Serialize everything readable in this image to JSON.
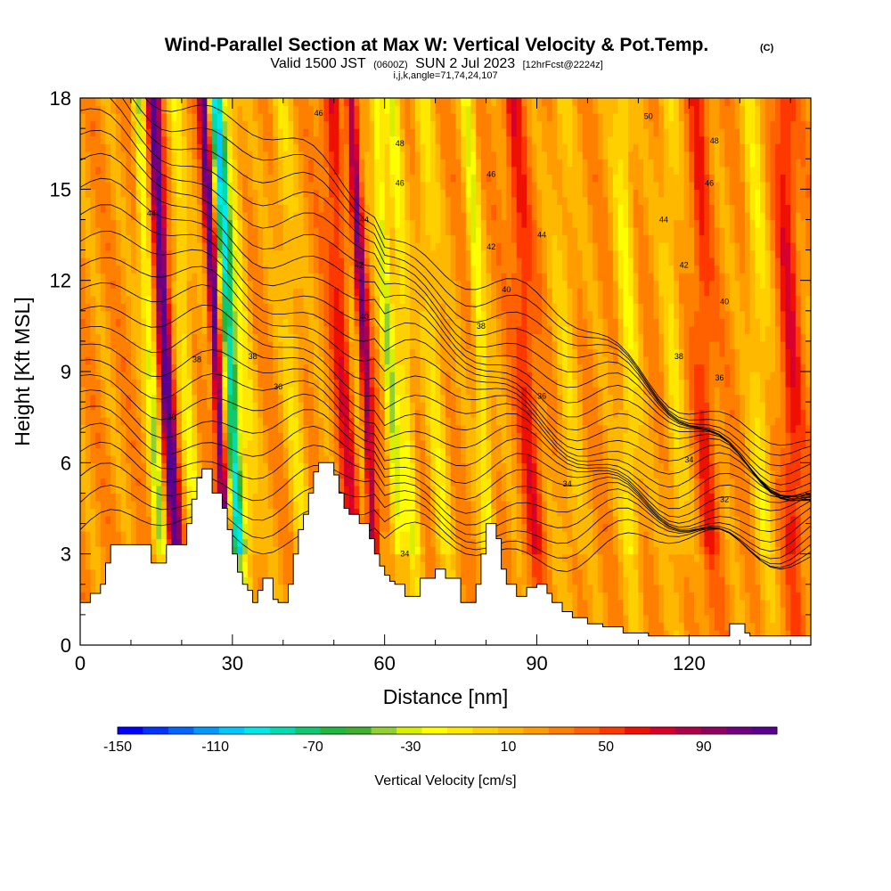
{
  "chart_data": {
    "type": "heatmap",
    "title": "Wind-Parallel Section at Max W: Vertical Velocity & Pot.Temp.",
    "title_suffix": "(C)",
    "subtitle_parts": {
      "valid": "Valid 1500 JST",
      "utc": "(0600Z)",
      "date": "SUN 2 Jul 2023",
      "fcst": "[12hrFcst@2224z]"
    },
    "subtitle2": "i,j,k,angle=71,74,24,107",
    "xlabel": "Distance [nm]",
    "ylabel": "Height [Kft MSL]",
    "xlim": [
      0,
      144
    ],
    "ylim": [
      0,
      18
    ],
    "x_ticks": [
      "0",
      "30",
      "60",
      "90",
      "120"
    ],
    "y_ticks": [
      "0",
      "3",
      "6",
      "9",
      "12",
      "15",
      "18"
    ],
    "colorbar": {
      "label": "Vertical Velocity [cm/s]",
      "ticks": [
        "-150",
        "-110",
        "-70",
        "-30",
        "10",
        "50",
        "90"
      ],
      "range": [
        -150,
        120
      ],
      "colors": [
        "#0000ff",
        "#0033ff",
        "#0066ff",
        "#0099ff",
        "#00c8ff",
        "#00e8e8",
        "#00dcb0",
        "#10c870",
        "#20b840",
        "#40b030",
        "#90d030",
        "#d8f000",
        "#ffff00",
        "#ffe800",
        "#ffd000",
        "#ffb800",
        "#ff9c00",
        "#ff8000",
        "#ff6000",
        "#ff3800",
        "#ee1000",
        "#d8002a",
        "#b00048",
        "#900060",
        "#700080",
        "#580090"
      ]
    },
    "theta_contour_levels": [
      "32",
      "34",
      "36",
      "38",
      "40",
      "42",
      "44",
      "46",
      "48",
      "50"
    ],
    "contour_labels": [
      {
        "x": 47,
        "y": 17.5,
        "text": "46"
      },
      {
        "x": 112,
        "y": 17.4,
        "text": "50"
      },
      {
        "x": 125,
        "y": 16.6,
        "text": "48"
      },
      {
        "x": 63,
        "y": 16.5,
        "text": "48"
      },
      {
        "x": 81,
        "y": 15.5,
        "text": "46"
      },
      {
        "x": 63,
        "y": 15.2,
        "text": "46"
      },
      {
        "x": 124,
        "y": 15.2,
        "text": "46"
      },
      {
        "x": 14,
        "y": 14.2,
        "text": "44"
      },
      {
        "x": 56,
        "y": 14.0,
        "text": "44"
      },
      {
        "x": 115,
        "y": 14.0,
        "text": "44"
      },
      {
        "x": 91,
        "y": 13.5,
        "text": "44"
      },
      {
        "x": 81,
        "y": 13.1,
        "text": "42"
      },
      {
        "x": 55,
        "y": 12.5,
        "text": "42"
      },
      {
        "x": 119,
        "y": 12.5,
        "text": "42"
      },
      {
        "x": 84,
        "y": 11.7,
        "text": "40"
      },
      {
        "x": 127,
        "y": 11.3,
        "text": "40"
      },
      {
        "x": 56,
        "y": 10.8,
        "text": "40"
      },
      {
        "x": 79,
        "y": 10.5,
        "text": "38"
      },
      {
        "x": 23,
        "y": 9.4,
        "text": "38"
      },
      {
        "x": 34,
        "y": 9.5,
        "text": "38"
      },
      {
        "x": 118,
        "y": 9.5,
        "text": "38"
      },
      {
        "x": 126,
        "y": 8.8,
        "text": "36"
      },
      {
        "x": 39,
        "y": 8.5,
        "text": "36"
      },
      {
        "x": 91,
        "y": 8.2,
        "text": "36"
      },
      {
        "x": 18,
        "y": 7.5,
        "text": "36"
      },
      {
        "x": 120,
        "y": 6.1,
        "text": "34"
      },
      {
        "x": 96,
        "y": 5.3,
        "text": "34"
      },
      {
        "x": 127,
        "y": 4.8,
        "text": "32"
      },
      {
        "x": 64,
        "y": 3.0,
        "text": "34"
      }
    ],
    "terrain": [
      [
        0,
        1.4
      ],
      [
        2,
        1.4
      ],
      [
        2,
        1.7
      ],
      [
        4,
        1.7
      ],
      [
        4,
        2.0
      ],
      [
        5,
        2.0
      ],
      [
        5,
        2.7
      ],
      [
        6,
        2.7
      ],
      [
        6,
        3.3
      ],
      [
        14,
        3.3
      ],
      [
        14,
        2.7
      ],
      [
        17,
        2.7
      ],
      [
        17,
        3.3
      ],
      [
        21,
        3.3
      ],
      [
        21,
        4.0
      ],
      [
        22,
        4.0
      ],
      [
        22,
        4.8
      ],
      [
        23,
        4.8
      ],
      [
        23,
        5.5
      ],
      [
        24,
        5.5
      ],
      [
        24,
        5.8
      ],
      [
        26,
        5.8
      ],
      [
        26,
        5.0
      ],
      [
        28,
        5.0
      ],
      [
        28,
        4.5
      ],
      [
        29,
        4.5
      ],
      [
        29,
        3.8
      ],
      [
        30,
        3.8
      ],
      [
        30,
        3.0
      ],
      [
        31,
        3.0
      ],
      [
        31,
        2.4
      ],
      [
        32,
        2.4
      ],
      [
        32,
        2.0
      ],
      [
        33,
        2.0
      ],
      [
        33,
        1.8
      ],
      [
        34,
        1.8
      ],
      [
        34,
        1.4
      ],
      [
        35,
        1.4
      ],
      [
        35,
        1.8
      ],
      [
        36,
        1.8
      ],
      [
        36,
        2.2
      ],
      [
        38,
        2.2
      ],
      [
        38,
        1.5
      ],
      [
        39,
        1.5
      ],
      [
        39,
        1.4
      ],
      [
        41,
        1.4
      ],
      [
        41,
        2.0
      ],
      [
        42,
        2.0
      ],
      [
        42,
        3.0
      ],
      [
        43,
        3.0
      ],
      [
        43,
        3.8
      ],
      [
        44,
        3.8
      ],
      [
        44,
        4.3
      ],
      [
        45,
        4.3
      ],
      [
        45,
        5.0
      ],
      [
        46,
        5.0
      ],
      [
        46,
        5.7
      ],
      [
        47,
        5.7
      ],
      [
        47,
        6.0
      ],
      [
        50,
        6.0
      ],
      [
        50,
        5.6
      ],
      [
        51,
        5.6
      ],
      [
        51,
        5.0
      ],
      [
        52,
        5.0
      ],
      [
        52,
        4.5
      ],
      [
        53,
        4.5
      ],
      [
        53,
        4.3
      ],
      [
        55,
        4.3
      ],
      [
        55,
        4.0
      ],
      [
        57,
        4.0
      ],
      [
        57,
        3.5
      ],
      [
        58,
        3.5
      ],
      [
        58,
        3.0
      ],
      [
        59,
        3.0
      ],
      [
        59,
        2.6
      ],
      [
        60,
        2.6
      ],
      [
        60,
        2.3
      ],
      [
        61,
        2.3
      ],
      [
        61,
        2.1
      ],
      [
        62,
        2.1
      ],
      [
        62,
        2.0
      ],
      [
        64,
        2.0
      ],
      [
        64,
        1.6
      ],
      [
        67,
        1.6
      ],
      [
        67,
        2.2
      ],
      [
        70,
        2.2
      ],
      [
        70,
        2.5
      ],
      [
        72,
        2.5
      ],
      [
        72,
        2.2
      ],
      [
        75,
        2.2
      ],
      [
        75,
        1.4
      ],
      [
        78,
        1.4
      ],
      [
        78,
        2.0
      ],
      [
        79,
        2.0
      ],
      [
        79,
        3.0
      ],
      [
        80,
        3.0
      ],
      [
        80,
        4.0
      ],
      [
        82,
        4.0
      ],
      [
        82,
        3.5
      ],
      [
        83,
        3.5
      ],
      [
        83,
        2.5
      ],
      [
        84,
        2.5
      ],
      [
        84,
        2.0
      ],
      [
        86,
        2.0
      ],
      [
        86,
        1.6
      ],
      [
        88,
        1.6
      ],
      [
        88,
        1.9
      ],
      [
        90,
        1.9
      ],
      [
        90,
        2.0
      ],
      [
        92,
        2.0
      ],
      [
        92,
        1.7
      ],
      [
        93,
        1.7
      ],
      [
        93,
        1.4
      ],
      [
        95,
        1.4
      ],
      [
        95,
        1.1
      ],
      [
        97,
        1.1
      ],
      [
        97,
        0.9
      ],
      [
        100,
        0.9
      ],
      [
        100,
        0.7
      ],
      [
        103,
        0.7
      ],
      [
        103,
        0.6
      ],
      [
        107,
        0.6
      ],
      [
        107,
        0.4
      ],
      [
        112,
        0.4
      ],
      [
        112,
        0.3
      ],
      [
        128,
        0.3
      ],
      [
        128,
        0.7
      ],
      [
        131,
        0.7
      ],
      [
        131,
        0.4
      ],
      [
        132,
        0.4
      ],
      [
        132,
        0.3
      ],
      [
        144,
        0.3
      ]
    ]
  }
}
